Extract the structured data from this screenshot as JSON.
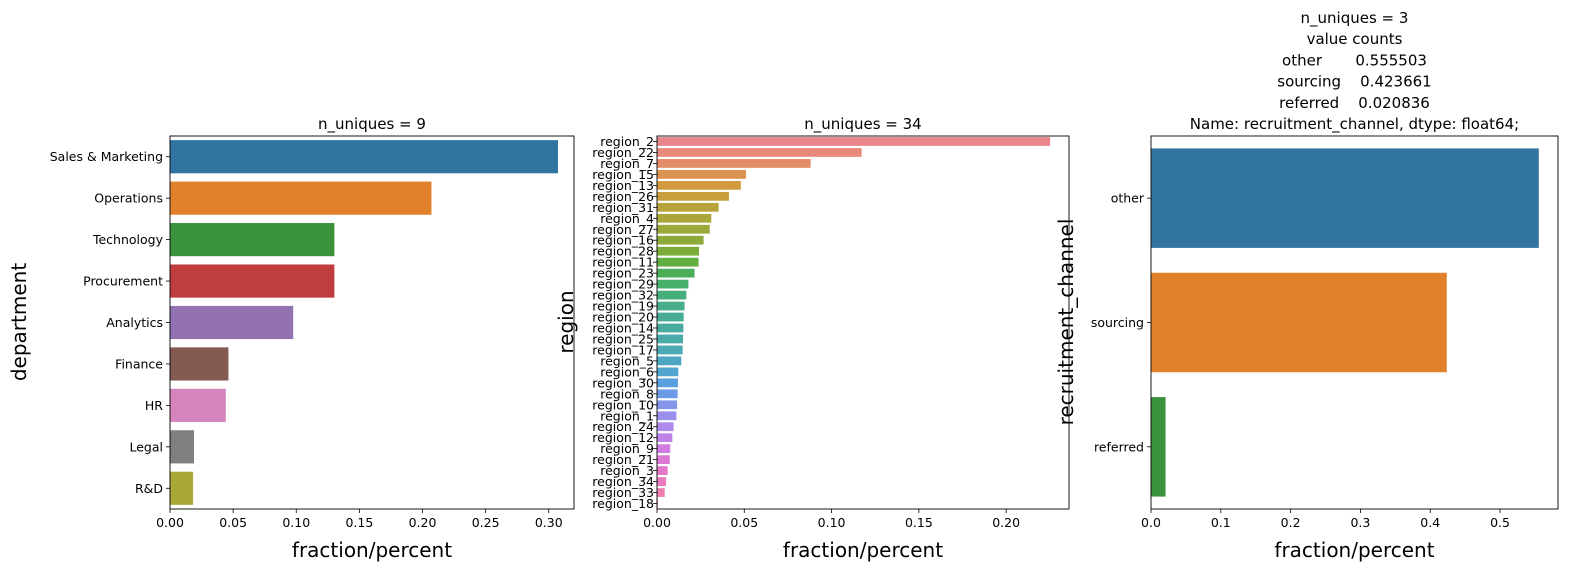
{
  "chart_data": [
    {
      "type": "bar",
      "orientation": "horizontal",
      "title": "n_uniques = 9",
      "xlabel": "fraction/percent",
      "ylabel": "department",
      "xlim": [
        0,
        0.32
      ],
      "xticks": [
        "0.00",
        "0.05",
        "0.10",
        "0.15",
        "0.20",
        "0.25",
        "0.30"
      ],
      "categories": [
        "Sales & Marketing",
        "Operations",
        "Technology",
        "Procurement",
        "Analytics",
        "Finance",
        "HR",
        "Legal",
        "R&D"
      ],
      "values": [
        0.3073,
        0.2071,
        0.1302,
        0.1302,
        0.0976,
        0.0463,
        0.0442,
        0.019,
        0.0183
      ],
      "colors": [
        "#3274a1",
        "#e1812c",
        "#3a923a",
        "#c03d3e",
        "#9372b2",
        "#845b53",
        "#d684bd",
        "#7f7f7f",
        "#a9aa35"
      ]
    },
    {
      "type": "bar",
      "orientation": "horizontal",
      "title": "n_uniques = 34",
      "xlabel": "fraction/percent",
      "ylabel": "region",
      "xlim": [
        0,
        0.236
      ],
      "xticks": [
        "0.00",
        "0.05",
        "0.10",
        "0.15",
        "0.20"
      ],
      "categories": [
        "region_2",
        "region_22",
        "region_7",
        "region_15",
        "region_13",
        "region_26",
        "region_31",
        "region_4",
        "region_27",
        "region_16",
        "region_28",
        "region_11",
        "region_23",
        "region_29",
        "region_32",
        "region_19",
        "region_20",
        "region_14",
        "region_25",
        "region_17",
        "region_5",
        "region_6",
        "region_30",
        "region_8",
        "region_10",
        "region_1",
        "region_24",
        "region_12",
        "region_9",
        "region_21",
        "region_3",
        "region_34",
        "region_33",
        "region_18"
      ],
      "values": [
        0.2252,
        0.1172,
        0.088,
        0.051,
        0.048,
        0.0412,
        0.0353,
        0.0311,
        0.0302,
        0.0267,
        0.0241,
        0.0238,
        0.0215,
        0.018,
        0.0168,
        0.0158,
        0.0153,
        0.0151,
        0.0149,
        0.0147,
        0.0139,
        0.0122,
        0.012,
        0.0118,
        0.0115,
        0.0111,
        0.0095,
        0.0088,
        0.0076,
        0.0073,
        0.0061,
        0.0052,
        0.0044,
        0.0005
      ],
      "colors": [
        "#e8868d",
        "#e8897b",
        "#e48c68",
        "#dc9250",
        "#d19a3e",
        "#c69f3c",
        "#b8a33b",
        "#a9a63a",
        "#9ba83a",
        "#8caa39",
        "#7aac39",
        "#62ae41",
        "#4baf57",
        "#45af6b",
        "#46ae7b",
        "#47ad88",
        "#48ac94",
        "#49ab9f",
        "#4aaaaa",
        "#4ba9b5",
        "#4da7c2",
        "#50a4d0",
        "#58a0de",
        "#6b9be6",
        "#8396ea",
        "#9a90ec",
        "#ae8aec",
        "#c083e8",
        "#d07ce1",
        "#dd78d6",
        "#e678ca",
        "#eb7bbd",
        "#ee7fae",
        "#ee83a0"
      ]
    },
    {
      "type": "bar",
      "orientation": "horizontal",
      "title": "n_uniques = 3\nvalue counts\nother       0.555503\nsourcing    0.423661\nreferred    0.020836\nName: recruitment_channel, dtype: float64;",
      "xlabel": "fraction/percent",
      "ylabel": "recruitment_channel",
      "xlim": [
        0,
        0.583
      ],
      "xticks": [
        "0.0",
        "0.1",
        "0.2",
        "0.3",
        "0.4",
        "0.5"
      ],
      "categories": [
        "other",
        "sourcing",
        "referred"
      ],
      "values": [
        0.555503,
        0.423661,
        0.020836
      ],
      "colors": [
        "#3274a1",
        "#e1812c",
        "#3a923a"
      ]
    }
  ]
}
